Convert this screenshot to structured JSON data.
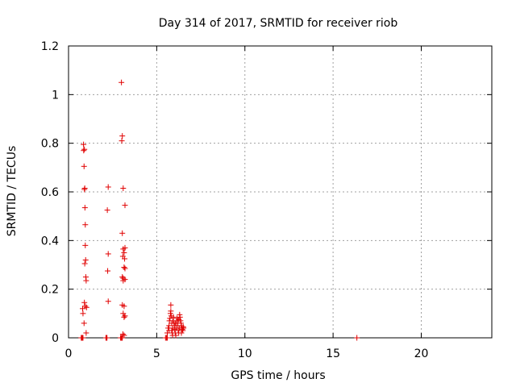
{
  "chart_data": {
    "type": "scatter",
    "title": "Day 314 of 2017, SRMTID for receiver riob",
    "xlabel": "GPS time / hours",
    "ylabel": "SRMTID / TECUs",
    "xlim": [
      0,
      24
    ],
    "ylim": [
      0,
      1.2
    ],
    "xticks": [
      0,
      5,
      10,
      15,
      20
    ],
    "xtick_labels": [
      "0",
      "5",
      "10",
      "15",
      "20"
    ],
    "yticks": [
      0,
      0.2,
      0.4,
      0.6,
      0.8,
      1.0,
      1.2
    ],
    "ytick_labels": [
      "0",
      "0.2",
      "0.4",
      "0.6",
      "0.8",
      "1",
      "1.2"
    ],
    "grid": true,
    "marker": "+",
    "series": [
      {
        "name": "SRMTID",
        "color": "#e00000",
        "points": [
          [
            0.72,
            0.0
          ],
          [
            0.75,
            0.0
          ],
          [
            0.78,
            0.0
          ],
          [
            0.8,
            0.0
          ],
          [
            0.82,
            0.0
          ],
          [
            0.8,
            0.12
          ],
          [
            0.82,
            0.1
          ],
          [
            0.85,
            0.795
          ],
          [
            0.86,
            0.77
          ],
          [
            0.88,
            0.705
          ],
          [
            0.9,
            0.775
          ],
          [
            0.9,
            0.61
          ],
          [
            0.92,
            0.615
          ],
          [
            0.93,
            0.535
          ],
          [
            0.95,
            0.465
          ],
          [
            0.95,
            0.38
          ],
          [
            0.97,
            0.32
          ],
          [
            0.92,
            0.305
          ],
          [
            0.98,
            0.25
          ],
          [
            1.0,
            0.235
          ],
          [
            0.9,
            0.145
          ],
          [
            0.95,
            0.13
          ],
          [
            1.02,
            0.125
          ],
          [
            0.88,
            0.06
          ],
          [
            1.0,
            0.02
          ],
          [
            2.12,
            0.0
          ],
          [
            2.15,
            0.0
          ],
          [
            2.18,
            0.0
          ],
          [
            2.25,
            0.62
          ],
          [
            2.2,
            0.525
          ],
          [
            2.25,
            0.345
          ],
          [
            2.22,
            0.275
          ],
          [
            2.25,
            0.15
          ],
          [
            2.95,
            0.0
          ],
          [
            2.98,
            0.0
          ],
          [
            3.0,
            0.0
          ],
          [
            3.02,
            0.0
          ],
          [
            3.05,
            0.0
          ],
          [
            3.0,
            1.05
          ],
          [
            3.05,
            0.83
          ],
          [
            3.02,
            0.81
          ],
          [
            3.1,
            0.615
          ],
          [
            3.2,
            0.545
          ],
          [
            3.05,
            0.43
          ],
          [
            3.2,
            0.37
          ],
          [
            3.1,
            0.365
          ],
          [
            3.15,
            0.35
          ],
          [
            3.08,
            0.335
          ],
          [
            3.18,
            0.325
          ],
          [
            3.15,
            0.29
          ],
          [
            3.2,
            0.285
          ],
          [
            3.05,
            0.25
          ],
          [
            3.1,
            0.245
          ],
          [
            3.2,
            0.24
          ],
          [
            3.1,
            0.235
          ],
          [
            3.05,
            0.135
          ],
          [
            3.15,
            0.13
          ],
          [
            3.1,
            0.1
          ],
          [
            3.2,
            0.09
          ],
          [
            3.15,
            0.085
          ],
          [
            3.08,
            0.015
          ],
          [
            3.15,
            0.01
          ],
          [
            5.5,
            0.0
          ],
          [
            5.55,
            0.0
          ],
          [
            5.6,
            0.0
          ],
          [
            5.6,
            0.02
          ],
          [
            5.65,
            0.04
          ],
          [
            5.7,
            0.05
          ],
          [
            5.72,
            0.07
          ],
          [
            5.75,
            0.08
          ],
          [
            5.78,
            0.1
          ],
          [
            5.8,
            0.135
          ],
          [
            5.8,
            0.11
          ],
          [
            5.82,
            0.09
          ],
          [
            5.85,
            0.06
          ],
          [
            5.85,
            0.03
          ],
          [
            5.88,
            0.02
          ],
          [
            5.9,
            0.04
          ],
          [
            5.92,
            0.07
          ],
          [
            5.95,
            0.085
          ],
          [
            5.98,
            0.06
          ],
          [
            6.0,
            0.05
          ],
          [
            6.02,
            0.035
          ],
          [
            6.05,
            0.02
          ],
          [
            6.08,
            0.01
          ],
          [
            6.1,
            0.04
          ],
          [
            6.12,
            0.06
          ],
          [
            6.15,
            0.08
          ],
          [
            6.18,
            0.07
          ],
          [
            6.2,
            0.05
          ],
          [
            6.22,
            0.03
          ],
          [
            6.25,
            0.02
          ],
          [
            6.28,
            0.04
          ],
          [
            6.3,
            0.095
          ],
          [
            6.32,
            0.085
          ],
          [
            6.35,
            0.07
          ],
          [
            6.38,
            0.06
          ],
          [
            6.4,
            0.05
          ],
          [
            6.42,
            0.04
          ],
          [
            6.45,
            0.035
          ],
          [
            6.48,
            0.03
          ],
          [
            6.5,
            0.045
          ],
          [
            6.52,
            0.04
          ],
          [
            5.7,
            0.03
          ],
          [
            5.9,
            0.01
          ],
          [
            6.05,
            0.06
          ],
          [
            6.25,
            0.075
          ],
          [
            6.4,
            0.02
          ],
          [
            16.35,
            0.0
          ]
        ]
      }
    ]
  }
}
